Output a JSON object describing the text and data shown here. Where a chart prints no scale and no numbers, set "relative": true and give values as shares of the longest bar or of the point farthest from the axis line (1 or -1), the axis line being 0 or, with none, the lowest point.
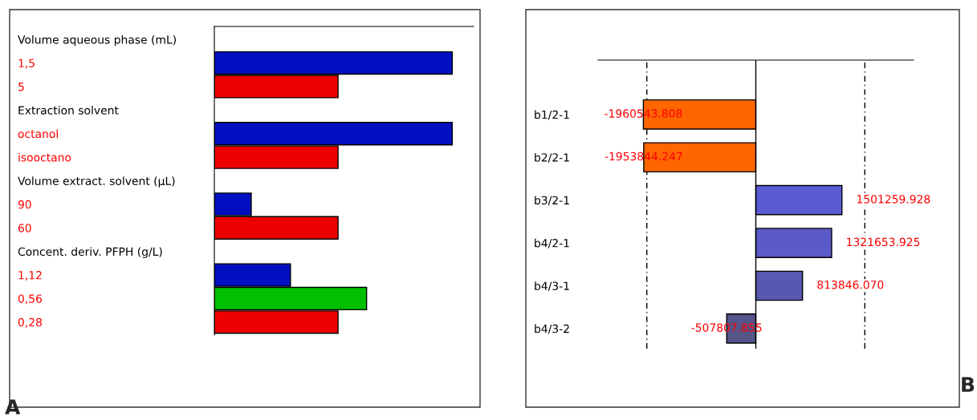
{
  "chart_data": [
    {
      "type": "bar",
      "orientation": "horizontal",
      "relative": true,
      "categories": [
        "Volume aqueous phase (mL)",
        "1,5",
        "5",
        "Extraction solvent",
        "octanol",
        "isooctano",
        "Volume extract. solvent (µL)",
        "90",
        "60",
        "Concent. deriv. PFPH (g/L)",
        "1,12",
        "0,56",
        "0,28"
      ],
      "values": [
        null,
        1,
        0.52,
        null,
        1,
        0.52,
        null,
        0.155,
        0.52,
        null,
        0.32,
        0.64,
        0.52
      ],
      "colors": [
        null,
        "#0010c0",
        "#ee0000",
        null,
        "#0010c0",
        "#ee0000",
        null,
        "#0010c0",
        "#ee0000",
        null,
        "#0010c0",
        "#00c000",
        "#ee0000"
      ],
      "annotations": [
        "A"
      ]
    },
    {
      "type": "bar",
      "orientation": "horizontal",
      "categories": [
        "b1/2-1",
        "b2/2-1",
        "b3/2-1",
        "b4/2-1",
        "b4/3-1",
        "b4/3-2"
      ],
      "values": [
        -1960543.808,
        -1953844.247,
        1501259.928,
        1321653.925,
        813846.07,
        -507807.855
      ],
      "value_labels": [
        "-1960543.808",
        "-1953844.247",
        "1501259.928",
        "1321653.925",
        "813846.070",
        "-507807.855"
      ],
      "colors": [
        "#ff6600",
        "#ff6600",
        "#5b5bd6",
        "#5a5ac8",
        "#5858b0",
        "#55558a"
      ],
      "xlim": [
        -2750000,
        2750000
      ],
      "ref_lines": [
        {
          "axis": "x",
          "value": -1900000,
          "line_style": "dashed"
        },
        {
          "axis": "x",
          "value": 1900000,
          "line_style": "dashed"
        }
      ],
      "annotations": [
        "B"
      ]
    }
  ]
}
